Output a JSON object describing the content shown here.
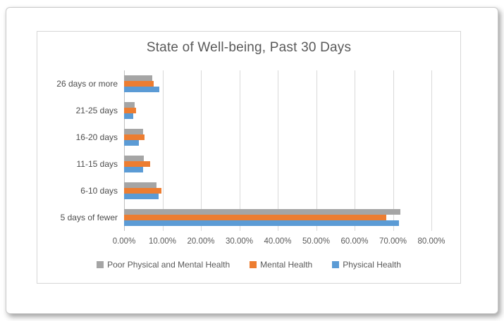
{
  "chart_data": {
    "type": "bar",
    "orientation": "horizontal",
    "title": "State of Well-being, Past 30 Days",
    "categories": [
      "26 days or more",
      "21-25 days",
      "16-20 days",
      "11-15 days",
      "6-10 days",
      "5 days of fewer"
    ],
    "series": [
      {
        "name": "Poor Physical and Mental Health",
        "color": "#A5A5A5",
        "values": [
          7.3,
          2.8,
          5.0,
          5.1,
          8.4,
          72.0
        ]
      },
      {
        "name": "Mental Health",
        "color": "#ED7D31",
        "values": [
          7.7,
          3.1,
          5.3,
          6.7,
          9.7,
          68.3
        ]
      },
      {
        "name": "Physical Health",
        "color": "#5B9BD5",
        "values": [
          9.2,
          2.3,
          3.9,
          4.9,
          8.9,
          71.6
        ]
      }
    ],
    "xlabel": "",
    "ylabel": "",
    "xlim": [
      0,
      80
    ],
    "xticks": [
      0,
      10,
      20,
      30,
      40,
      50,
      60,
      70,
      80
    ],
    "xtick_labels": [
      "0.00%",
      "10.00%",
      "20.00%",
      "30.00%",
      "40.00%",
      "50.00%",
      "60.00%",
      "70.00%",
      "80.00%"
    ],
    "grid": true,
    "legend_position": "bottom",
    "colors": {
      "gridline": "#D9D9D9",
      "axis_line": "#BFBFBF",
      "title_text": "#595959",
      "axis_text": "#595959",
      "category_text": "#4D4D4D",
      "chart_border": "#D6D6D6",
      "page_border": "#C9C9C9"
    }
  }
}
